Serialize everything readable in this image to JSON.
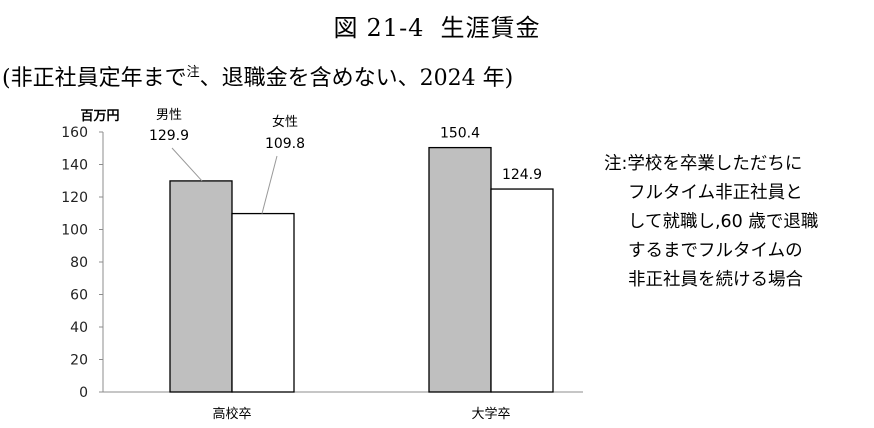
{
  "figure": {
    "label": "図",
    "number": "21-4",
    "name": "生涯賃金",
    "subtitle_pre": "(非正社員定年まで",
    "subtitle_sup": "注",
    "subtitle_post": "、退職金を含めない、2024 年)"
  },
  "note": {
    "lines": [
      "注:学校を卒業しただちに",
      "フルタイム非正社員と",
      "して就職し,60 歳で退職",
      "するまでフルタイムの",
      "非正社員を続ける場合"
    ]
  },
  "chart_data": {
    "type": "bar",
    "unit_label": "百万円",
    "categories": [
      "高校卒",
      "大学卒"
    ],
    "series": [
      {
        "name": "男性",
        "values": [
          129.9,
          150.4
        ],
        "color": "#bfbfbf"
      },
      {
        "name": "女性",
        "values": [
          109.8,
          124.9
        ],
        "color": "#ffffff"
      }
    ],
    "data_labels": [
      [
        "129.9",
        "150.4"
      ],
      [
        "109.8",
        "124.9"
      ]
    ],
    "ylim": [
      0,
      160
    ],
    "yticks": [
      0,
      20,
      40,
      60,
      80,
      100,
      120,
      140,
      160
    ],
    "grid": false,
    "legend": "series names shown as callouts above first category"
  }
}
